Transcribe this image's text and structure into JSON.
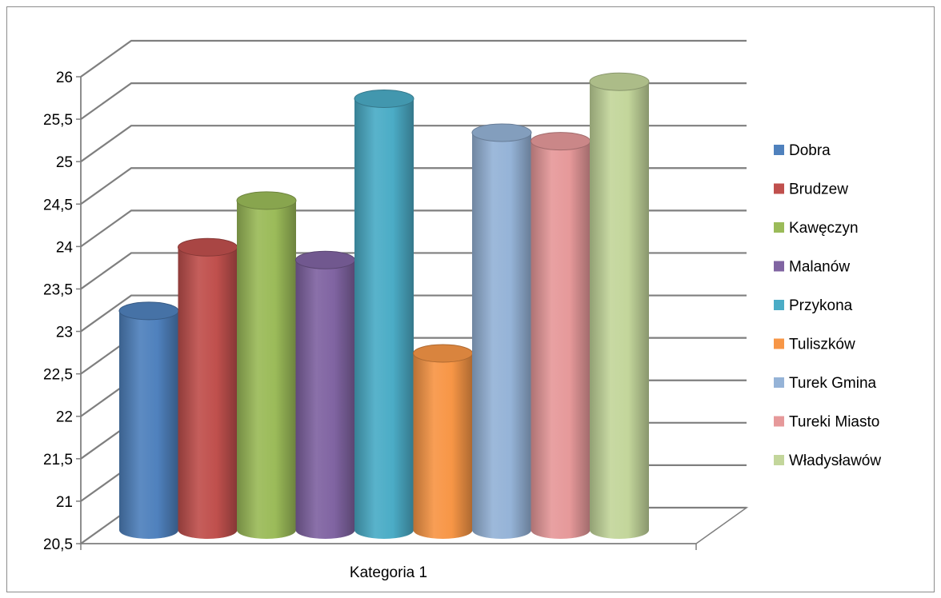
{
  "chart_data": {
    "type": "bar",
    "style": "3d-cylinder",
    "categories": [
      "Kategoria 1"
    ],
    "series": [
      {
        "name": "Dobra",
        "value": 23.1,
        "color": "#4f81bd"
      },
      {
        "name": "Brudzew",
        "value": 23.85,
        "color": "#c0504d"
      },
      {
        "name": "Kawęczyn",
        "value": 24.4,
        "color": "#9bbb59"
      },
      {
        "name": "Malanów",
        "value": 23.7,
        "color": "#8064a2"
      },
      {
        "name": "Przykona",
        "value": 25.6,
        "color": "#4bacc6"
      },
      {
        "name": "Tuliszków",
        "value": 22.6,
        "color": "#f79646"
      },
      {
        "name": "Turek Gmina",
        "value": 25.2,
        "color": "#95b3d7"
      },
      {
        "name": "Tureki Miasto",
        "value": 25.1,
        "color": "#e6999a"
      },
      {
        "name": "Władysławów",
        "value": 25.8,
        "color": "#c3d69b"
      }
    ],
    "y_ticks": [
      "20,5",
      "21",
      "21,5",
      "22",
      "22,5",
      "23",
      "23,5",
      "24",
      "24,5",
      "25",
      "25,5",
      "26"
    ],
    "ylim": [
      20.5,
      26
    ],
    "grid": true,
    "legend_position": "right"
  }
}
